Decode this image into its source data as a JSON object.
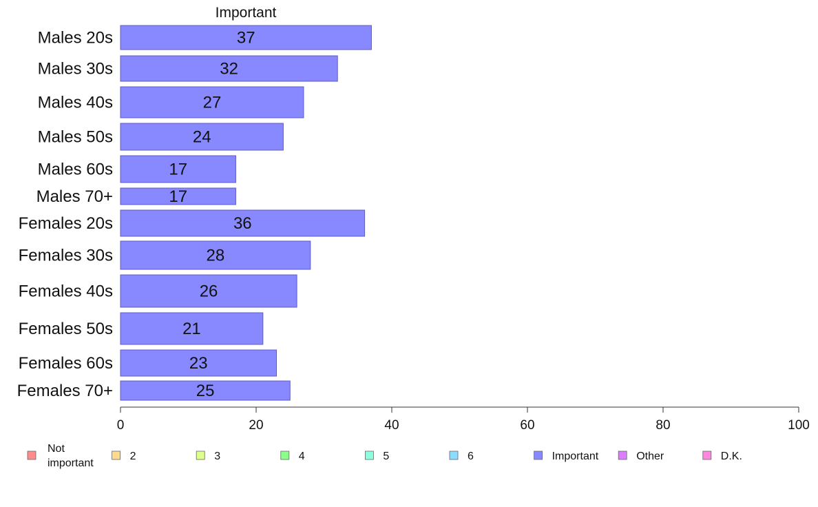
{
  "chart_data": {
    "type": "bar",
    "orientation": "horizontal",
    "title": "Important",
    "categories": [
      "Males 20s",
      "Males 30s",
      "Males 40s",
      "Males 50s",
      "Males 60s",
      "Males 70+",
      "Females 20s",
      "Females 30s",
      "Females 40s",
      "Females 50s",
      "Females 60s",
      "Females 70+"
    ],
    "series": [
      {
        "name": "Important",
        "values": [
          37,
          32,
          27,
          24,
          17,
          17,
          36,
          28,
          26,
          21,
          23,
          25
        ]
      }
    ],
    "bar_color": "#8888ff",
    "bar_edge_color": "#5c5cc9",
    "xlim": [
      0,
      100
    ],
    "x_ticks": [
      0,
      20,
      40,
      60,
      80,
      100
    ],
    "grid": false,
    "legend_position": "bottom",
    "legend": [
      {
        "label": "Not important",
        "color": "#ff8c8c"
      },
      {
        "label": "2",
        "color": "#ffd98c"
      },
      {
        "label": "3",
        "color": "#deff8c"
      },
      {
        "label": "4",
        "color": "#8cff8c"
      },
      {
        "label": "5",
        "color": "#8cffde"
      },
      {
        "label": "6",
        "color": "#8cdcff"
      },
      {
        "label": "Important",
        "color": "#8888ff"
      },
      {
        "label": "Other",
        "color": "#dc7cff"
      },
      {
        "label": "D.K.",
        "color": "#ff88de"
      }
    ]
  }
}
